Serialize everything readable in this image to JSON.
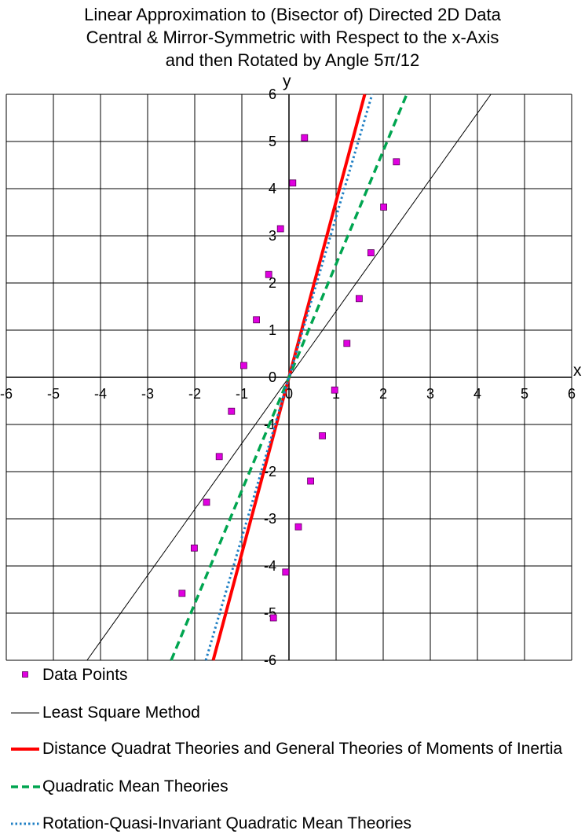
{
  "title_lines": [
    "Linear Approximation to (Bisector of) Directed 2D Data",
    "Central & Mirror-Symmetric with Respect to the x-Axis",
    "and then Rotated by Angle 5π/12"
  ],
  "chart_data": {
    "type": "scatter",
    "xlabel": "x",
    "ylabel": "y",
    "xlim": [
      -6,
      6
    ],
    "ylim": [
      -6,
      6
    ],
    "x_ticks": [
      "-6",
      "-5",
      "-4",
      "-3",
      "-2",
      "-1",
      "0",
      "1",
      "2",
      "3",
      "4",
      "5",
      "6"
    ],
    "y_ticks": [
      "6",
      "5",
      "4",
      "3",
      "2",
      "1",
      "0",
      "-1",
      "-2",
      "-3",
      "-4",
      "-5",
      "-6"
    ],
    "grid": true,
    "legend_position": "bottom",
    "points": {
      "name": "Data Points",
      "color": "#e000e0",
      "x": [
        0.33,
        2.28,
        0.08,
        2.01,
        -0.18,
        1.74,
        -0.43,
        1.49,
        -0.69,
        1.23,
        -0.96,
        0.97,
        -1.22,
        0.71,
        -1.48,
        0.46,
        -1.75,
        0.2,
        -2.01,
        -0.07,
        -2.27,
        -0.33
      ],
      "y": [
        5.08,
        4.57,
        4.12,
        3.61,
        3.15,
        2.64,
        2.18,
        1.67,
        1.22,
        0.72,
        0.25,
        -0.27,
        -0.72,
        -1.24,
        -1.68,
        -2.2,
        -2.65,
        -3.17,
        -3.62,
        -4.13,
        -4.58,
        -5.1
      ]
    },
    "lines": [
      {
        "name": "Least Square Method",
        "color": "#000000",
        "style": "solid",
        "slope": 1.4
      },
      {
        "name": "Distance Quadrat Theories and General Theories of Moments of Inertia",
        "color": "#ff0000",
        "style": "solid",
        "slope": 3.73
      },
      {
        "name": "Quadratic Mean Theories",
        "color": "#00a550",
        "style": "dashed",
        "slope": 2.4
      },
      {
        "name": "Rotation-Quasi-Invariant Quadratic Mean Theories",
        "color": "#1f7fc4",
        "style": "dotted",
        "slope": 3.4
      }
    ]
  }
}
